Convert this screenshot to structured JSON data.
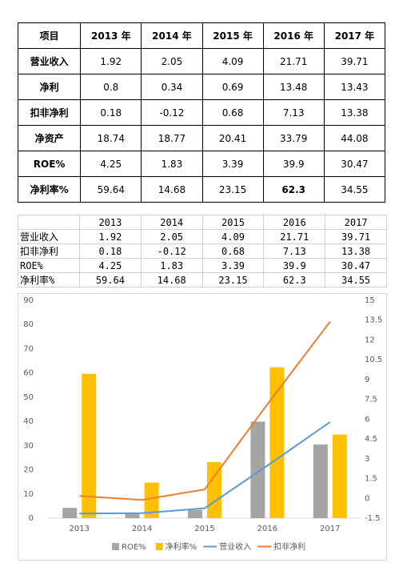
{
  "table1": {
    "header": [
      "项目",
      "2013 年",
      "2014 年",
      "2015 年",
      "2016 年",
      "2017 年"
    ],
    "rows": [
      [
        "营业收入",
        1.92,
        2.05,
        4.09,
        21.71,
        39.71
      ],
      [
        "净利",
        0.8,
        0.34,
        0.69,
        13.48,
        13.43
      ],
      [
        "扣非净利",
        0.18,
        -0.12,
        0.68,
        7.13,
        13.38
      ],
      [
        "净资产",
        18.74,
        18.77,
        20.41,
        33.79,
        44.08
      ],
      [
        "ROE%",
        4.25,
        1.83,
        3.39,
        39.9,
        30.47
      ],
      [
        "净利率%",
        59.64,
        14.68,
        23.15,
        62.3,
        34.55
      ]
    ]
  },
  "table2": {
    "header": [
      null,
      "2013",
      "2014",
      "2015",
      "2016",
      "2017"
    ],
    "rows": [
      [
        "营业收入",
        1.92,
        2.05,
        4.09,
        21.71,
        39.71
      ],
      [
        "扣非净利",
        0.18,
        -0.12,
        0.68,
        7.13,
        13.38
      ],
      [
        "ROE%",
        4.25,
        1.83,
        3.39,
        39.9,
        30.47
      ],
      [
        "净利率%",
        59.64,
        14.68,
        23.15,
        62.3,
        34.55
      ]
    ]
  },
  "chart_data": {
    "type": "combo",
    "categories": [
      "2013",
      "2014",
      "2015",
      "2016",
      "2017"
    ],
    "series": [
      {
        "name": "ROE%",
        "type": "bar",
        "color": "#a5a5a5",
        "values": [
          4.25,
          1.83,
          3.39,
          39.9,
          30.47
        ]
      },
      {
        "name": "净利率%",
        "type": "bar",
        "color": "#ffc000",
        "values": [
          59.64,
          14.68,
          23.15,
          62.3,
          34.55
        ]
      },
      {
        "name": "营业收入",
        "type": "line",
        "color": "#5b9bd5",
        "values": [
          1.92,
          2.05,
          4.09,
          21.71,
          39.71
        ]
      },
      {
        "name": "扣非净利",
        "type": "line",
        "axis": "y2",
        "color": "#ed7d31",
        "values": [
          0.18,
          -0.12,
          0.68,
          7.13,
          13.38
        ]
      }
    ],
    "ylim": [
      0,
      90
    ],
    "yticks": [
      0,
      10,
      20,
      30,
      40,
      50,
      60,
      70,
      80,
      90
    ],
    "y2lim": [
      -1.5,
      15
    ],
    "y2ticks": [
      -1.5,
      0,
      1.5,
      3,
      4.5,
      6,
      7.5,
      9,
      10.5,
      12,
      13.5,
      15
    ],
    "legend": "bottom"
  }
}
